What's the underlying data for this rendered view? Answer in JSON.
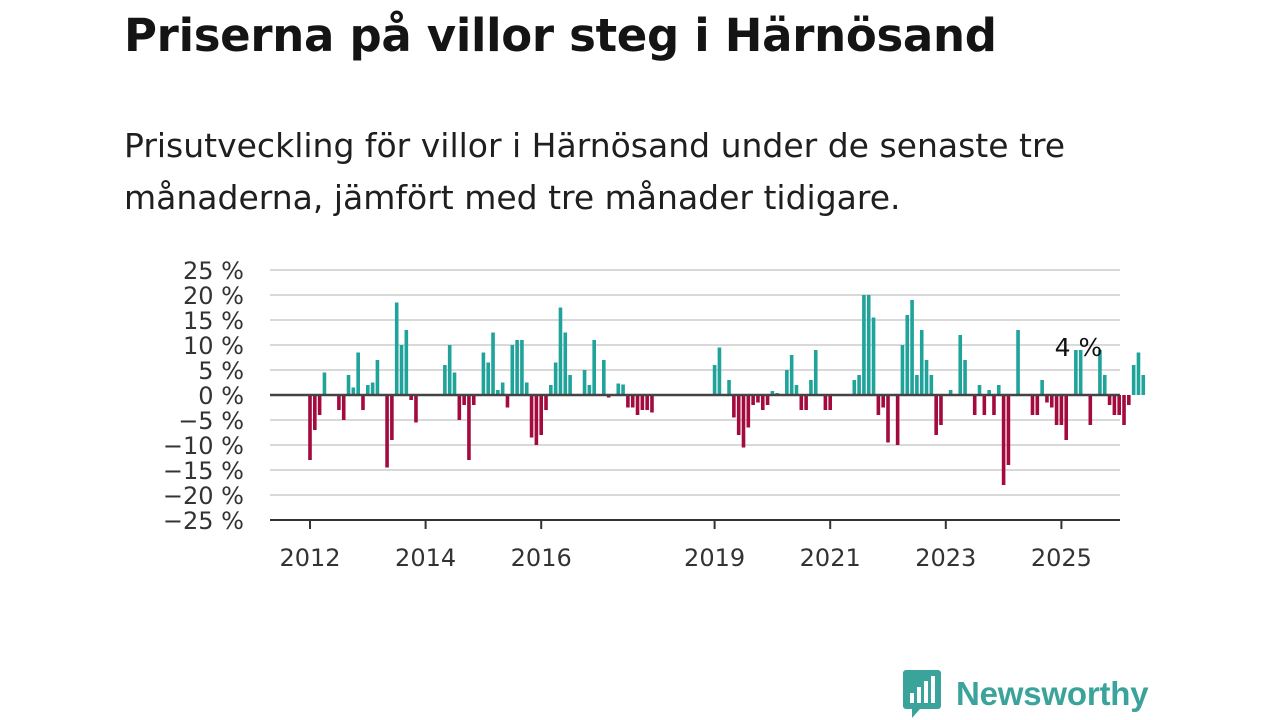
{
  "header": {
    "title": "Priserna på villor steg i Härnösand",
    "subtitle": "Prisutveckling för villor i Härnösand under de senaste tre månaderna, jämfört med tre månader tidigare."
  },
  "brand": {
    "name": "Newsworthy"
  },
  "colors": {
    "positive": "#1fa39a",
    "negative": "#a30a3d",
    "zero_line": "#444444",
    "grid": "#d9d9d9",
    "brand": "#3aa39a"
  },
  "chart_data": {
    "type": "bar",
    "ylim": [
      -25,
      25
    ],
    "y_ticks": [
      25,
      20,
      15,
      10,
      5,
      0,
      -5,
      -10,
      -15,
      -20,
      -25
    ],
    "y_tick_labels": [
      "25 %",
      "20 %",
      "15 %",
      "10 %",
      "5 %",
      "0 %",
      "−5 %",
      "−10 %",
      "−15 %",
      "−20 %",
      "−25 %"
    ],
    "x_tick_labels": [
      {
        "label": "2012",
        "x": 2012.0
      },
      {
        "label": "2014",
        "x": 2014.0
      },
      {
        "label": "2016",
        "x": 2016.0
      },
      {
        "label": "2019",
        "x": 2019.0
      },
      {
        "label": "2021",
        "x": 2021.0
      },
      {
        "label": "2023",
        "x": 2023.0
      },
      {
        "label": "2025",
        "x": 2025.0
      }
    ],
    "annotation": {
      "text": "4 %",
      "x": 2025.33
    },
    "grid": true,
    "legend": "none",
    "x_start": 2012,
    "months_per_bar": 1,
    "values": [
      -13,
      -7,
      -4,
      4.5,
      0,
      0,
      -3,
      -5,
      4,
      1.5,
      8.5,
      -3,
      2,
      2.5,
      7,
      0,
      -14.5,
      -9,
      18.5,
      10,
      13,
      -1,
      -5.5,
      0,
      0,
      0,
      0,
      0,
      6,
      10,
      4.5,
      -5,
      -2,
      -13,
      -2,
      0,
      8.5,
      6.5,
      12.5,
      1,
      2.5,
      -2.5,
      10,
      11,
      11,
      2.5,
      -8.5,
      -10,
      -8,
      -3,
      2,
      6.5,
      17.5,
      12.5,
      4,
      0,
      0,
      5,
      2,
      11,
      0,
      7,
      -0.5,
      0,
      2.3,
      2.1,
      -2.5,
      -2.5,
      -4,
      -3,
      -3,
      -3.5,
      0,
      0,
      0,
      0,
      0,
      0,
      0,
      0,
      0,
      0,
      0,
      0,
      6,
      9.5,
      0,
      3,
      -4.5,
      -8,
      -10.5,
      -6.5,
      -2,
      -1.5,
      -3,
      -2,
      0.8,
      0.4,
      0,
      5,
      8,
      2,
      -3,
      -3,
      3,
      9,
      0,
      -3,
      -3,
      0,
      0,
      0,
      0,
      3,
      4,
      20,
      20,
      15.5,
      -4,
      -2.5,
      -9.5,
      0,
      -10,
      10,
      16,
      19,
      4,
      13,
      7,
      4,
      -8,
      -6,
      0,
      1,
      0,
      12,
      7,
      0,
      -4,
      2,
      -4,
      1,
      -4,
      2,
      -18,
      -14,
      0,
      13,
      0,
      0,
      -4,
      -4,
      3,
      -1.5,
      -2.5,
      -6,
      -6,
      -9,
      0,
      9,
      9,
      0,
      -6,
      0,
      9,
      4,
      -2,
      -4,
      -4,
      -6,
      -2,
      6,
      8.5,
      4
    ]
  }
}
